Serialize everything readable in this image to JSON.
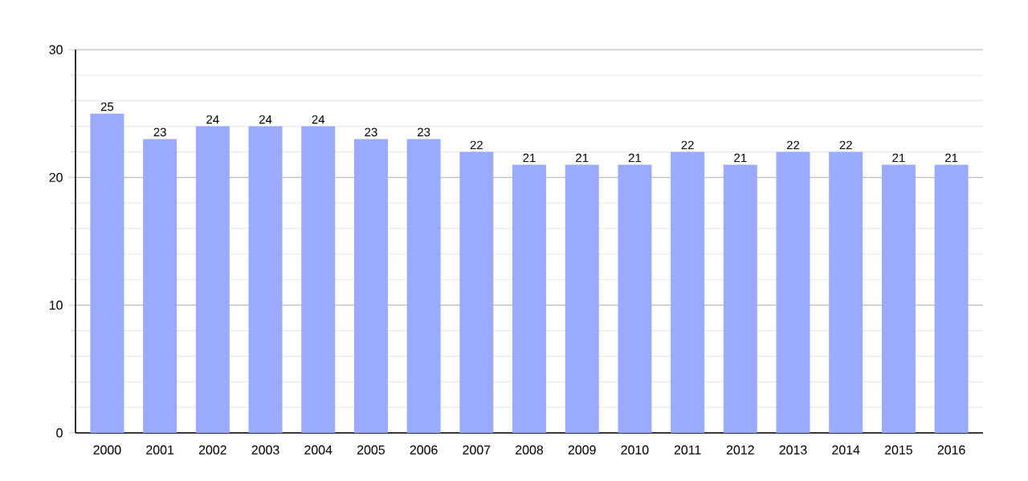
{
  "chart_data": {
    "type": "bar",
    "categories": [
      "2000",
      "2001",
      "2002",
      "2003",
      "2004",
      "2005",
      "2006",
      "2007",
      "2008",
      "2009",
      "2010",
      "2011",
      "2012",
      "2013",
      "2014",
      "2015",
      "2016"
    ],
    "values": [
      25,
      23,
      24,
      24,
      24,
      23,
      23,
      22,
      21,
      21,
      21,
      22,
      21,
      22,
      22,
      21,
      21
    ],
    "color": "#99aaff",
    "ylim": [
      0,
      30
    ],
    "yticks": [
      0,
      10,
      20,
      30
    ],
    "grid": "y",
    "data_labels": true
  }
}
